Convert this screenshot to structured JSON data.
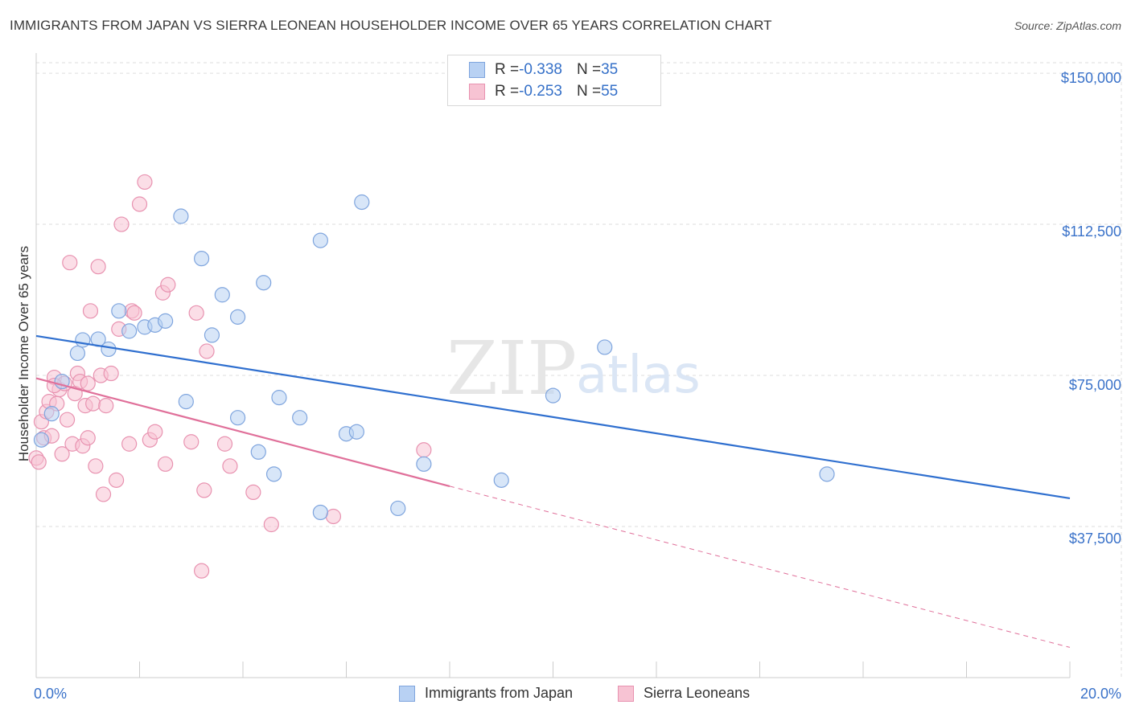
{
  "header": {
    "title": "IMMIGRANTS FROM JAPAN VS SIERRA LEONEAN HOUSEHOLDER INCOME OVER 65 YEARS CORRELATION CHART",
    "source": "Source: ZipAtlas.com"
  },
  "watermark": {
    "zip": "ZIP",
    "atlas": "atlas"
  },
  "legend": {
    "rows": [
      {
        "r_label": "R = ",
        "r_value": "-0.338",
        "n_label": "N = ",
        "n_value": "35"
      },
      {
        "r_label": "R = ",
        "r_value": "-0.253",
        "n_label": "N = ",
        "n_value": "55"
      }
    ]
  },
  "colors": {
    "japan_fill": "#b8d1f3",
    "japan_stroke": "#7fa5de",
    "japan_line": "#2f6fcf",
    "sierra_fill": "#f7c3d3",
    "sierra_stroke": "#e892b0",
    "sierra_line": "#e0709a",
    "grid": "#dddddd",
    "tick_text": "#3a72c9"
  },
  "chart_data": {
    "type": "scatter",
    "title": "IMMIGRANTS FROM JAPAN VS SIERRA LEONEAN HOUSEHOLDER INCOME OVER 65 YEARS CORRELATION CHART",
    "xlabel": "",
    "ylabel": "Householder Income Over 65 years",
    "xlim": [
      0,
      20
    ],
    "ylim": [
      0,
      155000
    ],
    "x_tick_labels": [
      "0.0%",
      "20.0%"
    ],
    "y_ticks": [
      37500,
      75000,
      112500,
      150000
    ],
    "y_tick_labels": [
      "$37,500",
      "$75,000",
      "$112,500",
      "$150,000"
    ],
    "series": [
      {
        "name": "Immigrants from Japan",
        "r": -0.338,
        "n": 35,
        "trend": {
          "x0": 0,
          "y0": 84800,
          "x1": 20,
          "y1": 44500
        },
        "points": [
          [
            0.1,
            59000
          ],
          [
            0.3,
            65500
          ],
          [
            0.5,
            73500
          ],
          [
            0.8,
            80500
          ],
          [
            0.9,
            83800
          ],
          [
            1.2,
            84000
          ],
          [
            1.4,
            81500
          ],
          [
            1.6,
            91000
          ],
          [
            1.8,
            86000
          ],
          [
            2.1,
            87000
          ],
          [
            2.3,
            87500
          ],
          [
            2.5,
            88500
          ],
          [
            2.8,
            114500
          ],
          [
            2.9,
            68500
          ],
          [
            3.2,
            104000
          ],
          [
            3.4,
            85000
          ],
          [
            3.6,
            95000
          ],
          [
            3.9,
            64500
          ],
          [
            3.9,
            89500
          ],
          [
            4.3,
            56000
          ],
          [
            4.4,
            98000
          ],
          [
            4.6,
            50500
          ],
          [
            4.7,
            69500
          ],
          [
            5.1,
            64500
          ],
          [
            5.5,
            108500
          ],
          [
            5.5,
            41000
          ],
          [
            6.0,
            60500
          ],
          [
            6.2,
            61000
          ],
          [
            6.3,
            118000
          ],
          [
            7.0,
            42000
          ],
          [
            7.5,
            53000
          ],
          [
            9.0,
            49000
          ],
          [
            10.0,
            70000
          ],
          [
            11.0,
            82000
          ],
          [
            15.3,
            50500
          ]
        ]
      },
      {
        "name": "Sierra Leoneans",
        "r": -0.253,
        "n": 55,
        "trend": {
          "x0": 0,
          "y0": 74300,
          "x1": 8,
          "y1": 47500,
          "dash_x1": 20,
          "dash_y1": 7500
        },
        "points": [
          [
            0.0,
            54500
          ],
          [
            0.05,
            53500
          ],
          [
            0.1,
            63500
          ],
          [
            0.15,
            59500
          ],
          [
            0.2,
            66000
          ],
          [
            0.25,
            68500
          ],
          [
            0.3,
            60000
          ],
          [
            0.35,
            74500
          ],
          [
            0.4,
            68000
          ],
          [
            0.45,
            71500
          ],
          [
            0.5,
            55500
          ],
          [
            0.55,
            73000
          ],
          [
            0.6,
            64000
          ],
          [
            0.65,
            103000
          ],
          [
            0.7,
            58000
          ],
          [
            0.75,
            70500
          ],
          [
            0.8,
            75500
          ],
          [
            0.85,
            73500
          ],
          [
            0.9,
            57500
          ],
          [
            0.95,
            67500
          ],
          [
            1.0,
            73000
          ],
          [
            1.05,
            91000
          ],
          [
            1.1,
            68000
          ],
          [
            1.15,
            52500
          ],
          [
            1.2,
            102000
          ],
          [
            1.25,
            75000
          ],
          [
            1.3,
            45500
          ],
          [
            1.35,
            67500
          ],
          [
            1.45,
            75500
          ],
          [
            1.55,
            49000
          ],
          [
            1.6,
            86500
          ],
          [
            1.65,
            112500
          ],
          [
            1.8,
            58000
          ],
          [
            1.85,
            91000
          ],
          [
            1.9,
            90500
          ],
          [
            2.0,
            117500
          ],
          [
            2.1,
            123000
          ],
          [
            2.2,
            59000
          ],
          [
            2.3,
            61000
          ],
          [
            2.45,
            95500
          ],
          [
            2.5,
            53000
          ],
          [
            2.55,
            97500
          ],
          [
            3.0,
            58500
          ],
          [
            3.1,
            90500
          ],
          [
            3.2,
            26500
          ],
          [
            3.25,
            46500
          ],
          [
            3.3,
            81000
          ],
          [
            3.65,
            58000
          ],
          [
            3.75,
            52500
          ],
          [
            4.2,
            46000
          ],
          [
            4.55,
            38000
          ],
          [
            5.75,
            40000
          ],
          [
            7.5,
            56500
          ],
          [
            0.35,
            72500
          ],
          [
            1.0,
            59500
          ]
        ]
      }
    ]
  },
  "bottom_legend": [
    {
      "label": "Immigrants from Japan"
    },
    {
      "label": "Sierra Leoneans"
    }
  ]
}
